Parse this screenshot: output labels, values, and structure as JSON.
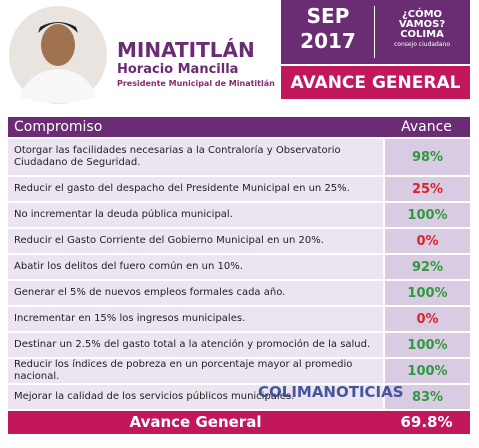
{
  "header": {
    "title": "MINATITLÁN",
    "name": "Horacio Mancilla",
    "role": "Presidente Municipal de Minatitlán",
    "month": "SEP",
    "year": "2017",
    "logo": {
      "line1": "¿CÓMO",
      "line2": "VAMOS?",
      "line3": "COLIMA",
      "tagline": "consejo ciudadano"
    },
    "banner": "AVANCE GENERAL"
  },
  "table": {
    "columns": [
      "Compromiso",
      "Avance"
    ],
    "rows": [
      {
        "text": "Otorgar las facilidades necesarias a la Contraloría y Observatorio Ciudadano de Seguridad.",
        "value": "98%",
        "color": "#2e9a3e"
      },
      {
        "text": "Reducir el gasto del despacho del Presidente Municipal en un 25%.",
        "value": "25%",
        "color": "#d8262e"
      },
      {
        "text": "No incrementar la deuda pública municipal.",
        "value": "100%",
        "color": "#2e9a3e"
      },
      {
        "text": "Reducir el Gasto Corriente del Gobierno Municipal en un 20%.",
        "value": "0%",
        "color": "#d8262e"
      },
      {
        "text": "Abatir los delitos del fuero común en un 10%.",
        "value": "92%",
        "color": "#2e9a3e"
      },
      {
        "text": "Generar el 5% de nuevos empleos formales cada año.",
        "value": "100%",
        "color": "#2e9a3e"
      },
      {
        "text": "Incrementar en 15% los ingresos municipales.",
        "value": "0%",
        "color": "#d8262e"
      },
      {
        "text": "Destinar un 2.5% del gasto total a la atención y promoción de la salud.",
        "value": "100%",
        "color": "#2e9a3e"
      },
      {
        "text": "Reducir los índices de pobreza en un porcentaje mayor al promedio nacional.",
        "value": "100%",
        "color": "#2e9a3e"
      },
      {
        "text": "Mejorar la calidad de los servicios públicos municipales.",
        "value": "83%",
        "color": "#2e9a3e"
      }
    ],
    "footer": {
      "label": "Avance General",
      "value": "69.8%"
    }
  },
  "watermark": "COLIMANOTICIAS"
}
